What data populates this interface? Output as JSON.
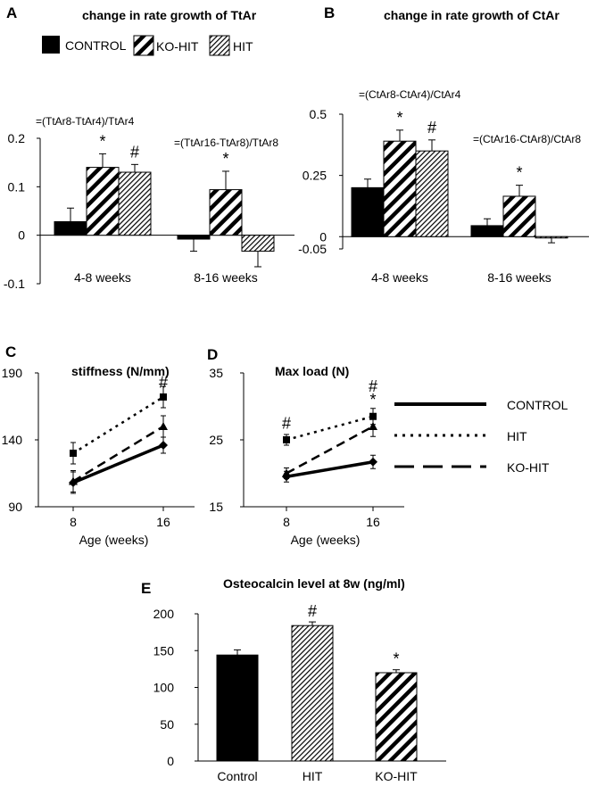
{
  "colors": {
    "control": "#000000",
    "hatch": "#000000",
    "background": "#ffffff"
  },
  "legend_top": {
    "items": [
      {
        "label": "CONTROL",
        "pattern": "solid"
      },
      {
        "label": "KO-HIT",
        "pattern": "wide-hatch"
      },
      {
        "label": "HIT",
        "pattern": "fine-hatch"
      }
    ]
  },
  "legend_lines": {
    "items": [
      {
        "label": "CONTROL",
        "style": "solid"
      },
      {
        "label": "HIT",
        "style": "dotted"
      },
      {
        "label": "KO-HIT",
        "style": "dashed"
      }
    ]
  },
  "chart_data": [
    {
      "id": "A",
      "type": "bar",
      "letter": "A",
      "title": "change in rate growth of TtAr",
      "categories": [
        "4-8 weeks",
        "8-16 weeks"
      ],
      "ylim": [
        -0.1,
        0.2
      ],
      "yticks": [
        -0.1,
        0,
        0.1,
        0.2
      ],
      "ytick_labels": [
        "-0.1",
        "0",
        "0.1",
        "0.2"
      ],
      "series": [
        {
          "name": "CONTROL",
          "pattern": "solid",
          "values": [
            0.028,
            -0.008
          ],
          "errors": [
            0.028,
            0.025
          ]
        },
        {
          "name": "KO-HIT",
          "pattern": "wide-hatch",
          "values": [
            0.14,
            0.094
          ],
          "errors": [
            0.028,
            0.038
          ]
        },
        {
          "name": "HIT",
          "pattern": "fine-hatch",
          "values": [
            0.13,
            -0.033
          ],
          "errors": [
            0.016,
            0.032
          ]
        }
      ],
      "formulas": [
        "=(TtAr8-TtAr4)/TtAr4",
        "=(TtAr16-TtAr8)/TtAr8"
      ],
      "annotations": [
        {
          "category": 0,
          "series": 1,
          "text": "*"
        },
        {
          "category": 0,
          "series": 2,
          "text": "#"
        },
        {
          "category": 1,
          "series": 1,
          "text": "*"
        }
      ]
    },
    {
      "id": "B",
      "type": "bar",
      "letter": "B",
      "title": "change in rate growth of CtAr",
      "categories": [
        "4-8 weeks",
        "8-16 weeks"
      ],
      "ylim": [
        -0.05,
        0.5
      ],
      "yticks": [
        -0.05,
        0,
        0.25,
        0.5
      ],
      "ytick_labels": [
        "-0.05",
        "0",
        "0.25",
        "0.5"
      ],
      "series": [
        {
          "name": "CONTROL",
          "pattern": "solid",
          "values": [
            0.2,
            0.045
          ],
          "errors": [
            0.035,
            0.028
          ]
        },
        {
          "name": "KO-HIT",
          "pattern": "wide-hatch",
          "values": [
            0.39,
            0.165
          ],
          "errors": [
            0.045,
            0.045
          ]
        },
        {
          "name": "HIT",
          "pattern": "fine-hatch",
          "values": [
            0.35,
            -0.005
          ],
          "errors": [
            0.045,
            0.02
          ]
        }
      ],
      "formulas": [
        "=(CtAr8-CtAr4)/CtAr4",
        "=(CtAr16-CtAr8)/CtAr8"
      ],
      "annotations": [
        {
          "category": 0,
          "series": 1,
          "text": "*"
        },
        {
          "category": 0,
          "series": 2,
          "text": "#"
        },
        {
          "category": 1,
          "series": 1,
          "text": "*"
        }
      ]
    },
    {
      "id": "C",
      "type": "line",
      "letter": "C",
      "title": "stiffness (N/mm)",
      "xlabel": "Age (weeks)",
      "x": [
        8,
        16
      ],
      "xtick_labels": [
        "8",
        "16"
      ],
      "ylim": [
        90,
        190
      ],
      "yticks": [
        90,
        140,
        190
      ],
      "ytick_labels": [
        "90",
        "140",
        "190"
      ],
      "series": [
        {
          "name": "CONTROL",
          "style": "solid",
          "marker": "diamond",
          "values": [
            108,
            136
          ],
          "errors": [
            8,
            6
          ]
        },
        {
          "name": "HIT",
          "style": "dotted",
          "marker": "square",
          "values": [
            130,
            172
          ],
          "errors": [
            8,
            8
          ]
        },
        {
          "name": "KO-HIT",
          "style": "dashed",
          "marker": "triangle",
          "values": [
            109,
            150
          ],
          "errors": [
            8,
            8
          ]
        }
      ],
      "annotations": [
        {
          "x": 16,
          "y": 183,
          "text": "#"
        }
      ]
    },
    {
      "id": "D",
      "type": "line",
      "letter": "D",
      "title": "Max load (N)",
      "xlabel": "Age (weeks)",
      "x": [
        8,
        16
      ],
      "xtick_labels": [
        "8",
        "16"
      ],
      "ylim": [
        15,
        35
      ],
      "yticks": [
        15,
        25,
        35
      ],
      "ytick_labels": [
        "15",
        "25",
        "35"
      ],
      "series": [
        {
          "name": "CONTROL",
          "style": "solid",
          "marker": "diamond",
          "values": [
            19.5,
            21.7
          ],
          "errors": [
            0.8,
            1.0
          ]
        },
        {
          "name": "HIT",
          "style": "dotted",
          "marker": "square",
          "values": [
            25,
            28.5
          ],
          "errors": [
            0.8,
            1.2
          ]
        },
        {
          "name": "KO-HIT",
          "style": "dashed",
          "marker": "triangle",
          "values": [
            20,
            27
          ],
          "errors": [
            0.8,
            1.5
          ]
        }
      ],
      "annotations": [
        {
          "x": 8,
          "y": 27.5,
          "text": "#"
        },
        {
          "x": 16,
          "y": 33,
          "text": "#"
        },
        {
          "x": 16,
          "y": 31,
          "text": "*"
        }
      ]
    },
    {
      "id": "E",
      "type": "bar",
      "letter": "E",
      "title": "Osteocalcin level at 8w (ng/ml)",
      "categories": [
        "Control",
        "HIT",
        "KO-HIT"
      ],
      "patterns": [
        "solid",
        "fine-hatch",
        "wide-hatch"
      ],
      "values": [
        144,
        184,
        120
      ],
      "errors": [
        7,
        5,
        4
      ],
      "ylim": [
        0,
        200
      ],
      "yticks": [
        0,
        50,
        100,
        150,
        200
      ],
      "ytick_labels": [
        "0",
        "50",
        "100",
        "150",
        "200"
      ],
      "annotations": [
        {
          "category": 1,
          "text": "#"
        },
        {
          "category": 2,
          "text": "*"
        }
      ]
    }
  ]
}
